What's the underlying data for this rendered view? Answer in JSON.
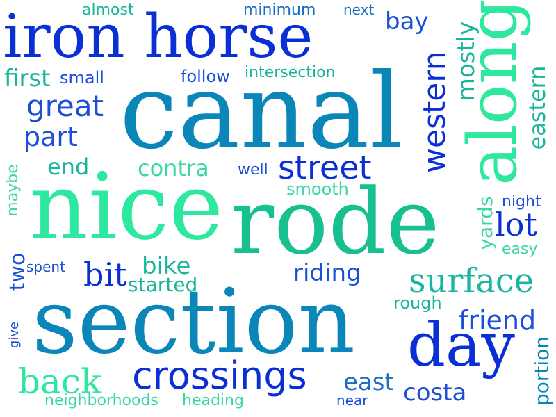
{
  "colors": {
    "deep_blue": "#0a2fd4",
    "blue": "#1a4fd6",
    "teal_blue": "#0b86b8",
    "teal": "#19b59a",
    "green": "#2ee8a0",
    "mint": "#3ad6a6"
  },
  "words": {
    "iron_horse": "iron horse",
    "canal": "canal",
    "nice": "nice",
    "rode": "rode",
    "section": "section",
    "along": "along",
    "day": "day",
    "crossings": "crossings",
    "street": "street",
    "surface": "surface",
    "back": "back",
    "western": "western",
    "great": "great",
    "lot": "lot",
    "bit": "bit",
    "part": "part",
    "friend": "friend",
    "costa": "costa",
    "east": "east",
    "mostly": "mostly",
    "eastern": "eastern",
    "contra": "contra",
    "riding": "riding",
    "bike": "bike",
    "end": "end",
    "two": "two",
    "first": "first",
    "small": "small",
    "bay": "bay",
    "yards": "yards",
    "started": "started",
    "portion": "portion",
    "smooth": "smooth",
    "rough": "rough",
    "intersection": "intersection",
    "almost": "almost",
    "minimum": "minimum",
    "next": "next",
    "follow": "follow",
    "well": "well",
    "night": "night",
    "easy": "easy",
    "spent": "spent",
    "maybe": "maybe",
    "give": "give",
    "neighborhoods": "neighborhoods",
    "heading": "heading",
    "near": "near"
  }
}
